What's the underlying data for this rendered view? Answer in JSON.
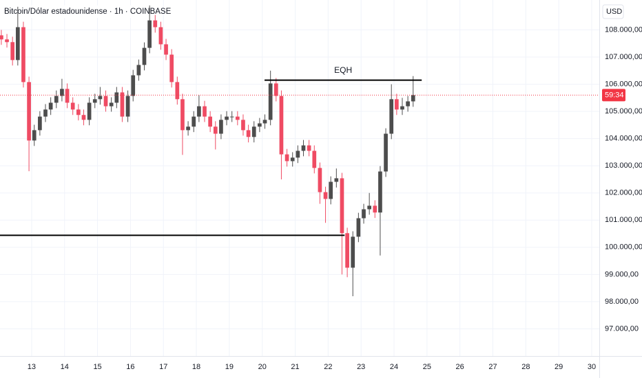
{
  "chart_data": {
    "type": "candlestick",
    "title": "Bitcoin/Dólar estadounidense · 1h · COINBASE",
    "currency": "USD",
    "colors": {
      "up": "#4d4d4d",
      "down": "#ef4b63"
    },
    "grid": true,
    "xlim": [
      12.04,
      30.23
    ],
    "ylim": [
      96000,
      109100
    ],
    "xticks": [
      13,
      14,
      15,
      16,
      17,
      18,
      19,
      20,
      21,
      22,
      23,
      24,
      25,
      26,
      27,
      28,
      29,
      30
    ],
    "yticks": [
      {
        "value": 97000,
        "label": "97.000,00"
      },
      {
        "value": 98000,
        "label": "98.000,00"
      },
      {
        "value": 99000,
        "label": "99.000,00"
      },
      {
        "value": 100000,
        "label": "100.000,00"
      },
      {
        "value": 101000,
        "label": "101.000,00"
      },
      {
        "value": 102000,
        "label": "102.000,00"
      },
      {
        "value": 103000,
        "label": "103.000,00"
      },
      {
        "value": 104000,
        "label": "104.000,00"
      },
      {
        "value": 105000,
        "label": "105.000,00"
      },
      {
        "value": 106000,
        "label": "106.000,00"
      },
      {
        "value": 107000,
        "label": "107.000,00"
      },
      {
        "value": 108000,
        "label": "108.000,00"
      }
    ],
    "x": [
      12.08,
      12.25,
      12.42,
      12.58,
      12.75,
      12.92,
      13.08,
      13.25,
      13.42,
      13.58,
      13.75,
      13.92,
      14.08,
      14.25,
      14.42,
      14.58,
      14.75,
      14.92,
      15.08,
      15.25,
      15.42,
      15.58,
      15.75,
      15.92,
      16.08,
      16.25,
      16.42,
      16.58,
      16.75,
      16.92,
      17.08,
      17.25,
      17.42,
      17.58,
      17.75,
      17.92,
      18.08,
      18.25,
      18.42,
      18.58,
      18.75,
      18.92,
      19.08,
      19.25,
      19.42,
      19.58,
      19.75,
      19.92,
      20.08,
      20.25,
      20.42,
      20.58,
      20.75,
      20.92,
      21.08,
      21.25,
      21.42,
      21.58,
      21.75,
      21.92,
      22.08,
      22.25,
      22.42,
      22.58,
      22.75,
      22.92,
      23.08,
      23.25,
      23.42,
      23.58,
      23.75,
      23.92,
      24.08,
      24.25,
      24.42,
      24.58
    ],
    "open": [
      107800,
      107650,
      107550,
      106890,
      108100,
      106080,
      103930,
      104310,
      104810,
      105070,
      105320,
      105570,
      105830,
      105320,
      105070,
      104870,
      104690,
      105320,
      105450,
      105570,
      105190,
      105320,
      105700,
      104810,
      105570,
      106330,
      106710,
      107340,
      108350,
      108100,
      107470,
      107090,
      106080,
      105450,
      104310,
      104440,
      104810,
      105190,
      104810,
      104440,
      104180,
      104690,
      104810,
      104810,
      104690,
      104310,
      104060,
      104440,
      104560,
      104690,
      106030,
      105570,
      103420,
      103170,
      103300,
      103550,
      103750,
      103550,
      102920,
      102030,
      101780,
      102410,
      102540,
      100520,
      99250,
      100390,
      101070,
      101400,
      101530,
      101280,
      102790,
      104180,
      105450,
      105070,
      105190,
      105370
    ],
    "high": [
      108000,
      107850,
      107750,
      108850,
      108300,
      106280,
      104510,
      105010,
      105270,
      105520,
      105770,
      106200,
      106030,
      105520,
      105270,
      105070,
      105520,
      105650,
      105900,
      105770,
      105520,
      105900,
      105900,
      105770,
      106530,
      106910,
      107540,
      108900,
      108550,
      108300,
      107670,
      107290,
      106280,
      105650,
      104640,
      105010,
      105600,
      105390,
      105010,
      104640,
      104890,
      105010,
      105010,
      105010,
      104890,
      104510,
      104640,
      104760,
      104890,
      106500,
      106230,
      105770,
      103620,
      103500,
      103750,
      103950,
      103950,
      103750,
      103120,
      102230,
      102610,
      102900,
      102740,
      100720,
      100590,
      101270,
      101600,
      102000,
      101730,
      102990,
      104380,
      106000,
      105650,
      105500,
      105570,
      106300
    ],
    "low": [
      107450,
      107350,
      106690,
      106690,
      105880,
      102800,
      103730,
      104110,
      104610,
      104870,
      105120,
      105370,
      105120,
      104870,
      104670,
      104490,
      104490,
      105120,
      105250,
      104990,
      104990,
      105120,
      104610,
      104610,
      105370,
      106130,
      106510,
      107140,
      107900,
      107270,
      106890,
      105880,
      105250,
      103400,
      104110,
      104240,
      104610,
      104610,
      104240,
      103600,
      103980,
      104490,
      104610,
      104490,
      104110,
      103860,
      103860,
      104240,
      104360,
      104490,
      105370,
      102500,
      102970,
      102970,
      103100,
      103350,
      103350,
      102720,
      101600,
      100900,
      101580,
      102200,
      99000,
      98900,
      98200,
      100190,
      100870,
      101200,
      101080,
      99700,
      102590,
      103980,
      104870,
      104870,
      104990,
      105170
    ],
    "close": [
      107650,
      107550,
      106890,
      108100,
      106080,
      103930,
      104310,
      104810,
      105070,
      105320,
      105570,
      105830,
      105320,
      105070,
      104870,
      104690,
      105320,
      105450,
      105570,
      105190,
      105320,
      105700,
      104810,
      105570,
      106330,
      106710,
      107340,
      108350,
      108100,
      107470,
      107090,
      106080,
      105450,
      104310,
      104440,
      104810,
      105190,
      104810,
      104440,
      104180,
      104690,
      104810,
      104810,
      104690,
      104310,
      104060,
      104440,
      104560,
      104690,
      106030,
      105570,
      103420,
      103170,
      103300,
      103550,
      103750,
      103550,
      102920,
      102030,
      101780,
      102410,
      102540,
      100520,
      99250,
      100390,
      101070,
      101400,
      101530,
      101280,
      102790,
      104180,
      105450,
      105070,
      105190,
      105370,
      105600
    ],
    "levels": [
      {
        "label": "EQH",
        "value": 106150,
        "x": [
          20.07,
          24.84
        ]
      },
      {
        "value": 100440,
        "x": [
          12.04,
          22.5
        ]
      }
    ],
    "price_line": {
      "value": 105600,
      "label": "59:34",
      "color": "#f23645"
    }
  }
}
